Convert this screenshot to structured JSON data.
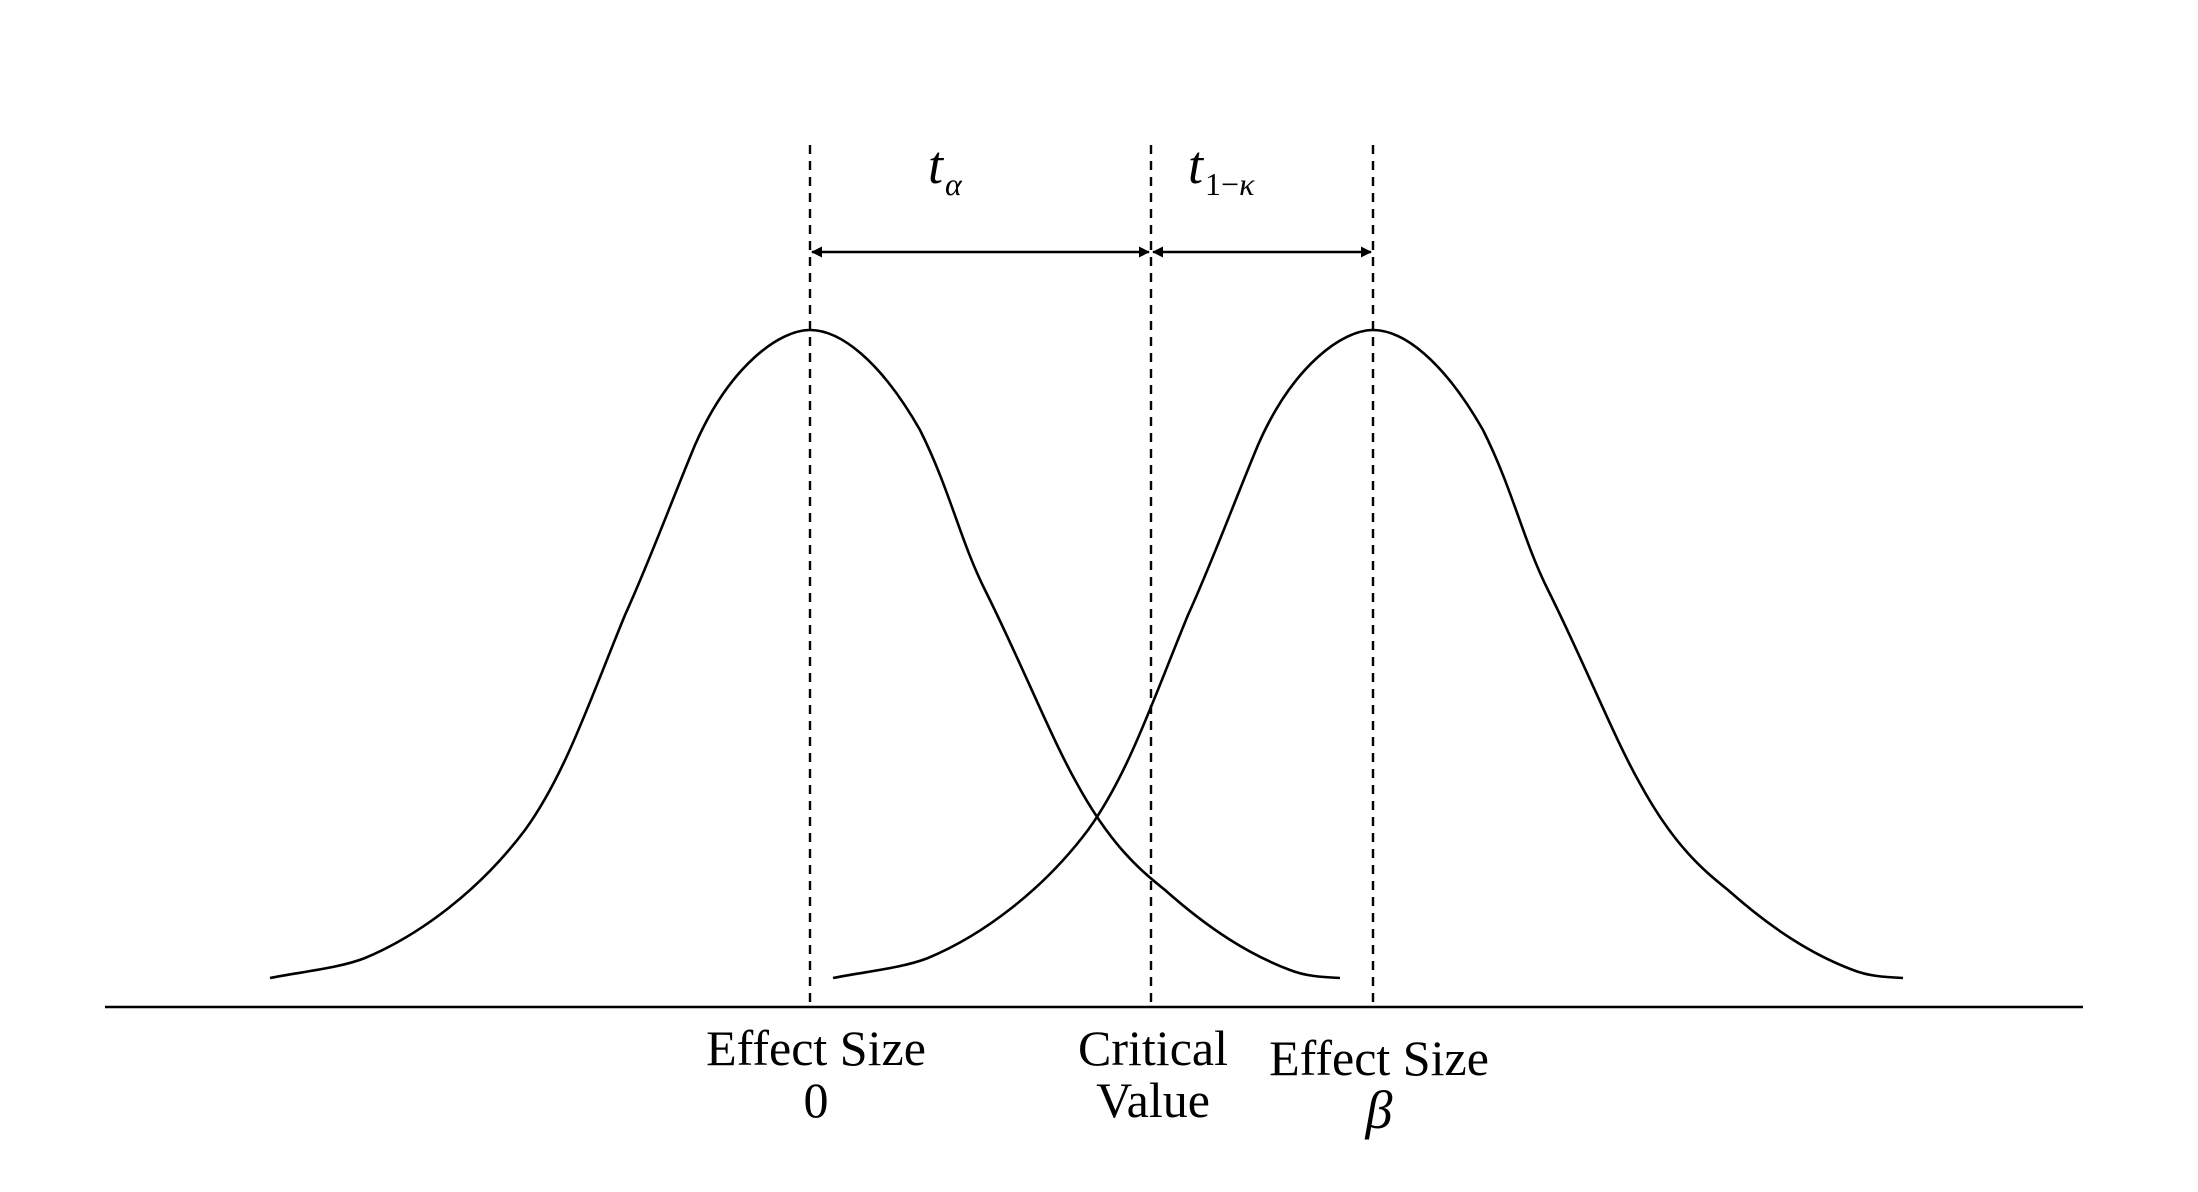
{
  "diagram": {
    "interval_alpha": {
      "symbol": "t",
      "subscript": "α"
    },
    "interval_power": {
      "symbol": "t",
      "subscript_num": "1−",
      "subscript_greek": "κ"
    },
    "marker_null": {
      "line1": "Effect Size",
      "line2": "0"
    },
    "marker_critical": {
      "line1": "Critical",
      "line2": "Value"
    },
    "marker_alt": {
      "line1": "Effect Size",
      "line2": "β"
    }
  }
}
